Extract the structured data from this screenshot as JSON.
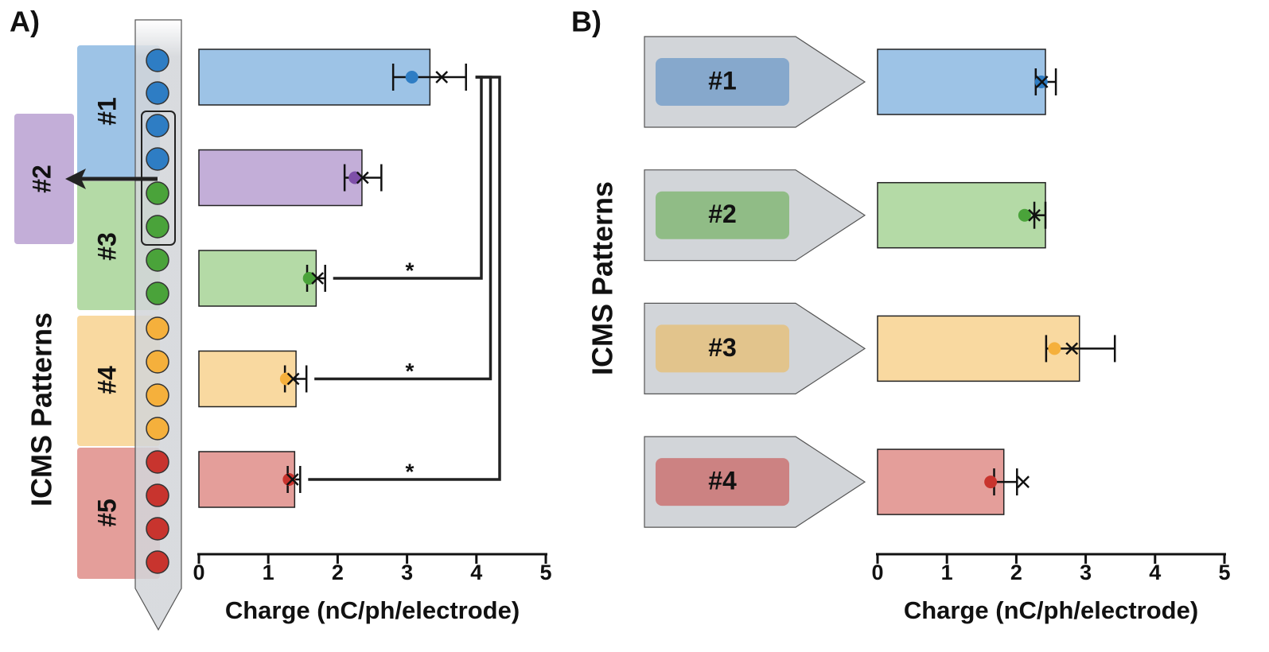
{
  "chart_data": [
    {
      "type": "bar",
      "panel": "A)",
      "ylabel": "ICMS Patterns",
      "xlabel": "Charge (nC/ph/electrode)",
      "categories": [
        "#1",
        "#2",
        "#3",
        "#4",
        "#5"
      ],
      "values": [
        3.33,
        2.35,
        1.69,
        1.4,
        1.38
      ],
      "colors": [
        "#9dc3e6",
        "#c3aed8",
        "#b4daa6",
        "#f9d9a0",
        "#e49e9a"
      ],
      "dot_values": [
        3.07,
        2.25,
        1.59,
        1.26,
        1.3
      ],
      "dot_colors": [
        "#2e7dc4",
        "#7e4fa8",
        "#4aa33a",
        "#f5b03c",
        "#c8342e"
      ],
      "cross_values": [
        3.5,
        2.36,
        1.71,
        1.36,
        1.35
      ],
      "err_low": [
        2.8,
        2.1,
        1.56,
        1.24,
        1.28
      ],
      "err_high": [
        3.85,
        2.63,
        1.82,
        1.55,
        1.46
      ],
      "comparisons": [
        {
          "categories": [
            "#1",
            "#3"
          ],
          "label": "*"
        },
        {
          "categories": [
            "#1",
            "#4"
          ],
          "label": "*"
        },
        {
          "categories": [
            "#1",
            "#5"
          ],
          "label": "*"
        }
      ],
      "xlim": [
        0,
        5
      ],
      "xticks": [
        0,
        1,
        2,
        3,
        4,
        5
      ]
    },
    {
      "type": "bar",
      "panel": "B)",
      "ylabel": "ICMS Patterns",
      "xlabel": "Charge (nC/ph/electrode)",
      "categories": [
        "#1",
        "#2",
        "#3",
        "#4"
      ],
      "values": [
        2.42,
        2.42,
        2.91,
        1.82
      ],
      "colors": [
        "#9dc3e6",
        "#b4daa6",
        "#f9d9a0",
        "#e49e9a"
      ],
      "dot_values": [
        2.36,
        2.12,
        2.55,
        1.63
      ],
      "dot_colors": [
        "#2e7dc4",
        "#4aa33a",
        "#f5b03c",
        "#c8342e"
      ],
      "cross_values": [
        2.37,
        2.26,
        2.8,
        2.1
      ],
      "err_low": [
        2.28,
        2.26,
        2.43,
        1.68
      ],
      "err_high": [
        2.57,
        2.42,
        3.42,
        2.01
      ],
      "xlim": [
        0,
        5
      ],
      "xticks": [
        0,
        1,
        2,
        3,
        4,
        5
      ]
    }
  ]
}
